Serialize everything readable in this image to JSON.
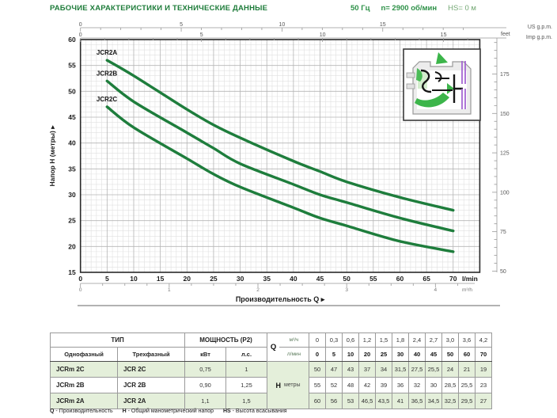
{
  "header": {
    "title": "РАБОЧИЕ ХАРАКТЕРИСТИКИ И ТЕХНИЧЕСКИЕ ДАННЫЕ",
    "frequency": "50 Гц",
    "speed": "n= 2900 об/мин",
    "suction": "HS= 0 м"
  },
  "chart_data": {
    "type": "line",
    "xlabel": "Производительность Q",
    "ylabel": "Напор H (метры)",
    "axis_arrow": "▸",
    "x_unit_primary": "l/min",
    "x_unit_secondary": "m³/h",
    "xlim": [
      0,
      75
    ],
    "ylim": [
      15,
      60
    ],
    "x_ticks": [
      0,
      5,
      10,
      15,
      20,
      25,
      30,
      35,
      40,
      45,
      50,
      55,
      60,
      65,
      70
    ],
    "y_ticks": [
      15,
      20,
      25,
      30,
      35,
      40,
      45,
      50,
      55,
      60
    ],
    "x_secondary": {
      "ticks": [
        0,
        1,
        2,
        3,
        4
      ],
      "lpm_per_unit": 16.6667,
      "minor_step": 0.25
    },
    "x_top_axes": [
      {
        "label": "US g.p.m.",
        "tick_labels": [
          0,
          5,
          10,
          15
        ],
        "lpm_per_unit": 3.785
      },
      {
        "label": "Imp g.p.m.",
        "tick_labels": [
          0,
          5,
          10,
          15
        ],
        "lpm_per_unit": 4.546
      }
    ],
    "y_right_axis": {
      "label": "feet",
      "tick_labels": [
        50,
        75,
        100,
        125,
        150,
        175
      ],
      "minor_step_ft": 5,
      "m_per_ft": 0.3048
    },
    "x_lmin": [
      5,
      10,
      20,
      25,
      30,
      40,
      45,
      50,
      60,
      70
    ],
    "series": [
      {
        "name": "JCR2A",
        "values": [
          56,
          53,
          46.5,
          43.5,
          41,
          36.5,
          34.5,
          32.5,
          29.5,
          27
        ]
      },
      {
        "name": "JCR2B",
        "values": [
          52,
          48,
          42,
          39,
          36,
          32,
          30,
          28.5,
          25.5,
          23
        ]
      },
      {
        "name": "JCR2C",
        "values": [
          47,
          43,
          37,
          34,
          31.5,
          27.5,
          25.5,
          24,
          21,
          19
        ]
      }
    ],
    "curve_color": "#1e7d3c",
    "grid": "on",
    "legend_position": "curve-start-labels"
  },
  "table": {
    "headers": {
      "type": "ТИП",
      "single_phase": "Однофазный",
      "three_phase": "Трехфазный",
      "power": "МОЩНОСТЬ (P2)",
      "kw": "кВт",
      "hp": "л.с.",
      "q": "Q",
      "m3h": "м³/ч",
      "lmin": "л/мин",
      "h": "H",
      "meters": "метры"
    },
    "q_m3h": [
      "0",
      "0,3",
      "0,6",
      "1,2",
      "1,5",
      "1,8",
      "2,4",
      "2,7",
      "3,0",
      "3,6",
      "4,2"
    ],
    "q_lmin": [
      "0",
      "5",
      "10",
      "20",
      "25",
      "30",
      "40",
      "45",
      "50",
      "60",
      "70"
    ],
    "rows": [
      {
        "single": "JCRm 2C",
        "three": "JCR 2C",
        "kw": "0,75",
        "hp": "1",
        "h": [
          "50",
          "47",
          "43",
          "37",
          "34",
          "31,5",
          "27,5",
          "25,5",
          "24",
          "21",
          "19"
        ]
      },
      {
        "single": "JCRm 2B",
        "three": "JCR 2B",
        "kw": "0,90",
        "hp": "1,25",
        "h": [
          "55",
          "52",
          "48",
          "42",
          "39",
          "36",
          "32",
          "30",
          "28,5",
          "25,5",
          "23"
        ]
      },
      {
        "single": "JCRm 2A",
        "three": "JCR 2A",
        "kw": "1,1",
        "hp": "1,5",
        "h": [
          "60",
          "56",
          "53",
          "46,5",
          "43,5",
          "41",
          "36,5",
          "34,5",
          "32,5",
          "29,5",
          "27"
        ]
      }
    ]
  },
  "footer": {
    "legend": [
      {
        "key": "Q",
        "desc": "- Производительность"
      },
      {
        "key": "H",
        "desc": "- Общий манометрический напор"
      },
      {
        "key": "HS",
        "desc": "- Высота всасывания"
      }
    ]
  }
}
